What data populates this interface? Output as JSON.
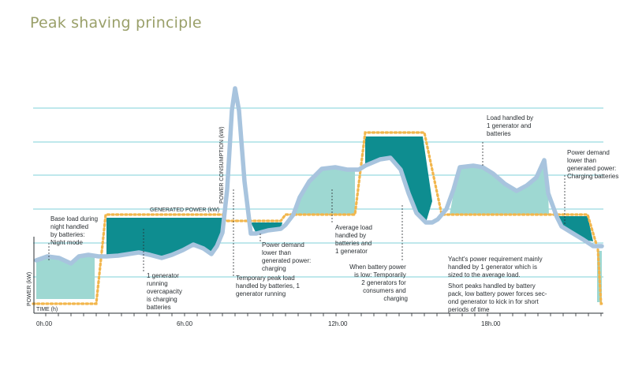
{
  "title": "Peak shaving principle",
  "colors": {
    "gridline": "#7fd0d8",
    "consumption_line": "#a8c4de",
    "generated_power": "#f2b64c",
    "battery_discharge_fill": "#0e8d90",
    "battery_charge_fill": "#9ed8d2"
  },
  "axes": {
    "y_label": "POWER (kW)",
    "x_label": "TIME (h)",
    "consumption_label": "POWER CONSUMPTION (kW)",
    "generated_label": "GENERATED POWER (kW)"
  },
  "ticks": [
    "0h.00",
    "6h.00",
    "12h.00",
    "18h.00"
  ],
  "annotations": {
    "base_load": [
      "Base load during",
      "night handled",
      "by batteries:",
      "Night mode"
    ],
    "one_gen_running": [
      "1 generator",
      "running",
      "overcapacity",
      "is charging",
      "batteries"
    ],
    "temporary_peak": [
      "Temporary peak load",
      "handled by batteries, 1",
      "generator running"
    ],
    "demand_lower_1": [
      "Power demand",
      "lower than",
      "generated power:",
      "charging"
    ],
    "average_load": [
      "Average load",
      "handled by",
      "batteries and",
      "1 generator"
    ],
    "battery_low": [
      "When battery power",
      "is low: Temporarily",
      "2 generators for",
      "consumers and",
      "charging"
    ],
    "one_gen_batteries": [
      "Load handled by",
      "1 generator and",
      "batteries"
    ],
    "demand_lower_2": [
      "Power demand",
      "lower than",
      "generated power:",
      "Charging batteries"
    ],
    "yacht_requirement": [
      "Yacht's power requirement mainly",
      "handled by 1 generator which is",
      "sized to the average load."
    ],
    "short_peaks": [
      "Short peaks handled by battery",
      "pack, low battery power forces sec-",
      "ond generator to kick in for short",
      "periods of time"
    ]
  }
}
